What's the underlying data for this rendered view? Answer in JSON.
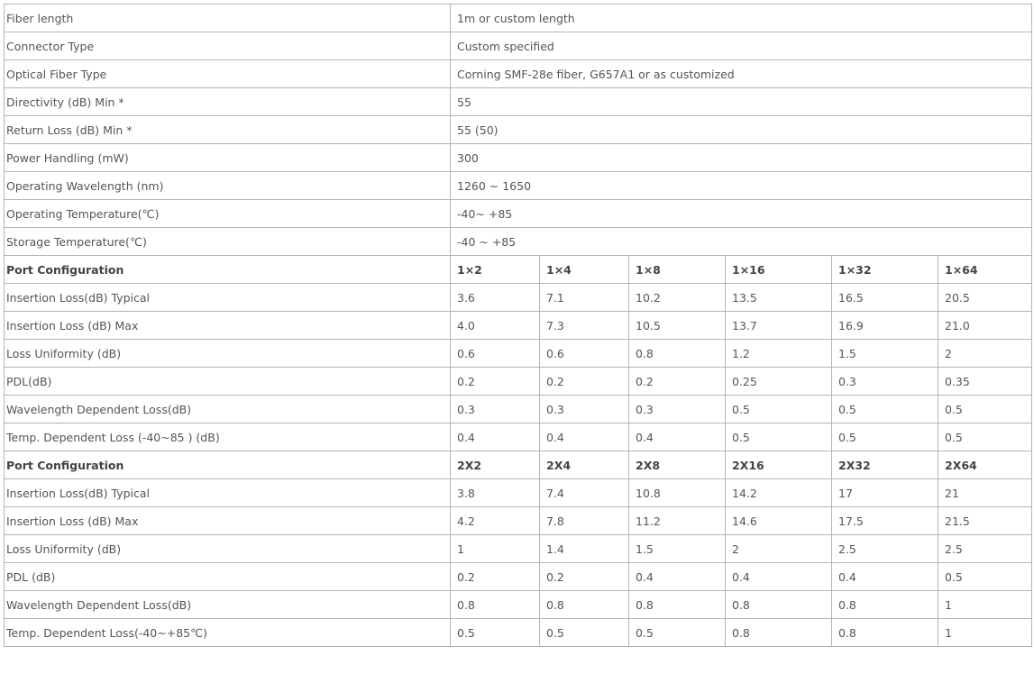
{
  "general": [
    {
      "label": "Fiber length",
      "value": "1m or custom length"
    },
    {
      "label": "Connector Type",
      "value": "Custom specified"
    },
    {
      "label": "Optical Fiber Type",
      "value": "Corning SMF-28e fiber, G657A1 or as customized"
    },
    {
      "label": "Directivity (dB) Min *",
      "value": "55"
    },
    {
      "label": "Return Loss (dB) Min *",
      "value": "55 (50)"
    },
    {
      "label": "Power Handling (mW)",
      "value": "300"
    },
    {
      "label": "Operating Wavelength (nm)",
      "value": "1260 ~ 1650"
    },
    {
      "label": "Operating Temperature(℃)",
      "value": "-40~ +85"
    },
    {
      "label": "Storage Temperature(℃)",
      "value": "-40 ~ +85"
    }
  ],
  "sections": [
    {
      "header": {
        "label": "Port Configuration",
        "values": [
          "1×2",
          "1×4",
          "1×8",
          "1×16",
          "1×32",
          "1×64"
        ]
      },
      "rows": [
        {
          "label": "Insertion Loss(dB) Typical",
          "values": [
            "3.6",
            "7.1",
            "10.2",
            "13.5",
            "16.5",
            "20.5"
          ]
        },
        {
          "label": "Insertion Loss (dB) Max",
          "values": [
            "4.0",
            "7.3",
            "10.5",
            "13.7",
            "16.9",
            "21.0"
          ]
        },
        {
          "label": "Loss Uniformity (dB)",
          "values": [
            "0.6",
            "0.6",
            "0.8",
            "1.2",
            "1.5",
            "2"
          ]
        },
        {
          "label": "PDL(dB)",
          "values": [
            "0.2",
            "0.2",
            "0.2",
            "0.25",
            "0.3",
            "0.35"
          ]
        },
        {
          "label": "Wavelength Dependent Loss(dB)",
          "values": [
            "0.3",
            "0.3",
            "0.3",
            "0.5",
            "0.5",
            "0.5"
          ]
        },
        {
          "label": "Temp. Dependent Loss (-40~85 ) (dB)",
          "values": [
            "0.4",
            "0.4",
            "0.4",
            "0.5",
            "0.5",
            "0.5"
          ]
        }
      ]
    },
    {
      "header": {
        "label": "Port Configuration",
        "values": [
          "2X2",
          "2X4",
          "2X8",
          "2X16",
          "2X32",
          "2X64"
        ]
      },
      "rows": [
        {
          "label": "Insertion Loss(dB) Typical",
          "values": [
            "3.8",
            "7.4",
            "10.8",
            "14.2",
            "17",
            "21"
          ]
        },
        {
          "label": "Insertion Loss (dB) Max",
          "values": [
            "4.2",
            "7.8",
            "11.2",
            "14.6",
            "17.5",
            "21.5"
          ]
        },
        {
          "label": "Loss Uniformity (dB)",
          "values": [
            "1",
            "1.4",
            "1.5",
            "2",
            "2.5",
            "2.5"
          ]
        },
        {
          "label": "PDL (dB)",
          "values": [
            "0.2",
            "0.2",
            "0.4",
            "0.4",
            "0.4",
            "0.5"
          ]
        },
        {
          "label": "Wavelength Dependent Loss(dB)",
          "values": [
            "0.8",
            "0.8",
            "0.8",
            "0.8",
            "0.8",
            "1"
          ]
        },
        {
          "label": "Temp. Dependent Loss(-40~+85℃)",
          "values": [
            "0.5",
            "0.5",
            "0.5",
            "0.8",
            "0.8",
            "1"
          ]
        }
      ]
    }
  ]
}
